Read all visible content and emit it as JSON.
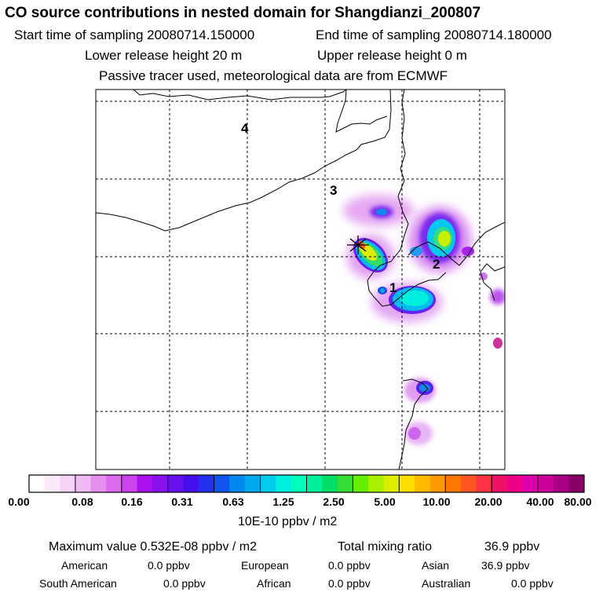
{
  "header": {
    "title": "CO  source contributions in nested domain for Shangdianzi_200807",
    "start_label": "Start time of sampling 20080714.150000",
    "end_label": "End time of sampling 20080714.180000",
    "lower_label": "Lower release height   20 m",
    "upper_label": "Upper release height    0 m",
    "tracer_label": "Passive tracer used, meteorological data are from ECMWF"
  },
  "map": {
    "region_labels": [
      "1",
      "2",
      "3",
      "4"
    ]
  },
  "colorbar": {
    "unit": "10E-10 ppbv / m2",
    "ticks": [
      "0.00",
      "0.08",
      "0.16",
      "0.31",
      "0.63",
      "1.25",
      "2.50",
      "5.00",
      "10.00",
      "20.00",
      "40.00",
      "80.00"
    ],
    "colors": [
      "#ffffff",
      "#fbe9fb",
      "#f6d4f7",
      "#f0b8f4",
      "#e78ff0",
      "#dd6aee",
      "#cc44ee",
      "#aa11ee",
      "#8811ee",
      "#6611ee",
      "#4411ee",
      "#2233ee",
      "#1155ee",
      "#0088ee",
      "#00aaee",
      "#00ccee",
      "#00eedd",
      "#00ffbb",
      "#00ee99",
      "#00dd66",
      "#33dd33",
      "#66ee00",
      "#aaee00",
      "#ddee00",
      "#ffdd00",
      "#ffbb00",
      "#ff9900",
      "#ff7700",
      "#ff5522",
      "#ff3344",
      "#ee1166",
      "#ee0088",
      "#dd00aa",
      "#cc0099",
      "#aa0088",
      "#880066"
    ]
  },
  "footer": {
    "max_label": "Maximum value  0.532E-08 ppbv / m2",
    "total_label": "Total mixing ratio",
    "total_value": "36.9 ppbv",
    "american_label": "American",
    "american_value": "0.0 ppbv",
    "european_label": "European",
    "european_value": "0.0 ppbv",
    "asian_label": "Asian",
    "asian_value": "36.9 ppbv",
    "south_american_label": "South American",
    "south_american_value": "0.0 ppbv",
    "african_label": "African",
    "african_value": "0.0 ppbv",
    "australian_label": "Australian",
    "australian_value": "0.0 ppbv"
  }
}
